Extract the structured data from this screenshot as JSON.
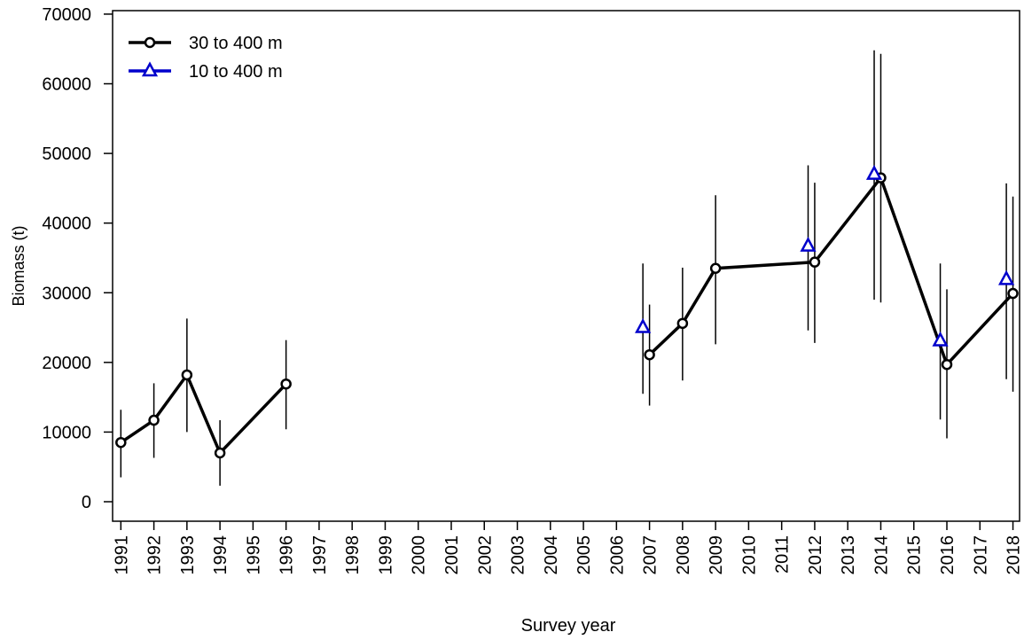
{
  "chart_data": {
    "type": "line",
    "x_label": "Survey year",
    "y_label": "Biomass (t)",
    "xlim": [
      1990.75,
      2018.2
    ],
    "ylim": [
      -2800,
      70500
    ],
    "xticks": [
      1991,
      1992,
      1993,
      1994,
      1995,
      1996,
      1997,
      1998,
      1999,
      2000,
      2001,
      2002,
      2003,
      2004,
      2005,
      2006,
      2007,
      2008,
      2009,
      2010,
      2011,
      2012,
      2013,
      2014,
      2015,
      2016,
      2017,
      2018
    ],
    "yticks": [
      0,
      10000,
      20000,
      30000,
      40000,
      50000,
      60000,
      70000
    ],
    "legend": "top-left",
    "series": [
      {
        "name": "30 to 400 m",
        "color": "#000000",
        "marker": "circle",
        "line": true,
        "x": [
          1991,
          1992,
          1993,
          1994,
          1996,
          null,
          2007,
          2008,
          2009,
          2012,
          2014,
          2016,
          2018
        ],
        "values": [
          8500,
          11700,
          18200,
          7000,
          16900,
          null,
          21100,
          25600,
          33500,
          34400,
          46500,
          19700,
          29900
        ],
        "lower": [
          3500,
          6300,
          10000,
          2300,
          10400,
          null,
          13800,
          17400,
          22600,
          22800,
          28600,
          9100,
          15800
        ],
        "upper": [
          13200,
          17000,
          26300,
          11700,
          23200,
          null,
          28300,
          33600,
          44000,
          45800,
          64300,
          30500,
          43800
        ]
      },
      {
        "name": "10 to 400 m",
        "color": "#0000cc",
        "marker": "triangle",
        "line": false,
        "x": [
          2006.8,
          2011.8,
          2013.8,
          2015.8,
          2017.8
        ],
        "values": [
          25000,
          36700,
          47000,
          23100,
          31900
        ],
        "lower": [
          15500,
          24600,
          29000,
          11800,
          17600
        ],
        "upper": [
          34200,
          48300,
          64800,
          34200,
          45700
        ]
      }
    ]
  }
}
